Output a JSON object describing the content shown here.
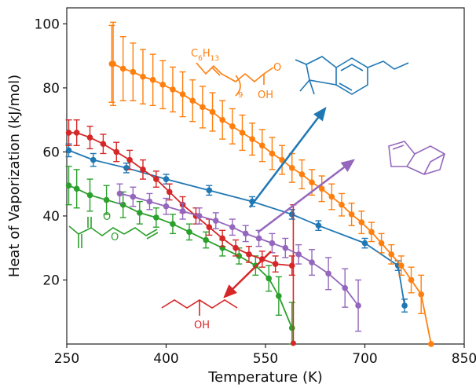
{
  "chart_data": {
    "type": "line",
    "xlabel": "Temperature (K)",
    "ylabel": "Heat of Vaporization (kJ/mol)",
    "xlim": [
      250,
      850
    ],
    "ylim": [
      0,
      105
    ],
    "xticks": [
      250,
      400,
      550,
      700,
      850
    ],
    "yticks": [
      20,
      40,
      60,
      80,
      100
    ],
    "grid": false,
    "series": [
      {
        "color": "#1f77b4",
        "molecule": "indane-derivative",
        "x": [
          253,
          290,
          340,
          400,
          465,
          530,
          590,
          630,
          700,
          750,
          760
        ],
        "y": [
          60.5,
          57.5,
          55,
          51.5,
          48,
          44.5,
          40.5,
          37,
          31.5,
          24.5,
          12
        ],
        "err": [
          2,
          2,
          1.5,
          1.5,
          1.5,
          1.5,
          1.5,
          1.5,
          1.5,
          1.5,
          2
        ]
      },
      {
        "color": "#ff7f0e",
        "molecule": "oleic-acid",
        "molecule_labels": [
          "C6H13",
          "9",
          "O",
          "OH"
        ],
        "x": [
          318,
          320,
          335,
          350,
          365,
          380,
          395,
          410,
          425,
          440,
          455,
          470,
          485,
          500,
          515,
          530,
          545,
          560,
          575,
          590,
          605,
          620,
          635,
          650,
          665,
          680,
          695,
          710,
          725,
          740,
          755,
          770,
          785,
          800
        ],
        "y": [
          87.5,
          87.5,
          86,
          85,
          83.5,
          82.5,
          81,
          79.5,
          78,
          76,
          74,
          72.5,
          70,
          68,
          66,
          64,
          62,
          59.5,
          57.5,
          55,
          53,
          50.5,
          48.5,
          46,
          43.5,
          40.5,
          38,
          35,
          31.5,
          28,
          24.5,
          20,
          15.5,
          0
        ],
        "err": [
          12,
          13,
          10,
          9,
          8.5,
          8,
          7.5,
          7,
          7,
          6.5,
          6.5,
          6,
          6,
          5.5,
          5.5,
          5,
          5,
          5,
          4.5,
          4.5,
          4.5,
          4,
          4,
          4,
          3.5,
          3.5,
          3.5,
          3,
          3,
          3,
          3,
          4,
          6,
          0
        ]
      },
      {
        "color": "#2ca02c",
        "molecule": "allyl-methacrylate",
        "x": [
          253,
          265,
          285,
          310,
          335,
          360,
          385,
          410,
          435,
          460,
          485,
          510,
          535,
          555,
          570,
          590
        ],
        "y": [
          49.5,
          48.5,
          46.5,
          45,
          43.5,
          41,
          39.5,
          37.5,
          35,
          32.5,
          30,
          27.5,
          24.5,
          20.5,
          15,
          5
        ],
        "err": [
          6,
          6,
          5,
          4.5,
          4,
          3.5,
          3,
          3,
          2.5,
          2.5,
          2.5,
          2.5,
          3,
          4,
          6,
          8
        ]
      },
      {
        "color": "#d62728",
        "molecule": "4-heptanol",
        "molecule_labels": [
          "OH"
        ],
        "x": [
          253,
          265,
          285,
          305,
          325,
          345,
          365,
          385,
          405,
          425,
          445,
          465,
          485,
          505,
          525,
          545,
          565,
          590
        ],
        "y": [
          66,
          66,
          64.5,
          62.5,
          60,
          57.5,
          54.5,
          51.5,
          47.5,
          43.5,
          40,
          36.5,
          33,
          30,
          28,
          26.5,
          25,
          24.5
        ],
        "err": [
          4,
          4,
          3.5,
          3,
          3,
          3,
          3,
          2.5,
          2.5,
          2.5,
          2.5,
          2.5,
          2.5,
          2.5,
          2.5,
          2.5,
          2.5,
          3
        ],
        "vertical_drop_x": 592
      },
      {
        "color": "#9467bd",
        "molecule": "dicyclopentadiene",
        "x": [
          330,
          350,
          375,
          400,
          425,
          450,
          475,
          500,
          520,
          540,
          560,
          580,
          600,
          620,
          645,
          670,
          690
        ],
        "y": [
          47,
          46,
          44.5,
          43,
          41.5,
          40,
          38.5,
          36.5,
          34.5,
          33,
          31.5,
          30,
          28,
          25.5,
          22,
          17.5,
          12
        ],
        "err": [
          3,
          3,
          2.5,
          2.5,
          2.5,
          2.5,
          2.5,
          2.5,
          2.5,
          2.5,
          3,
          3,
          3,
          4,
          5,
          6,
          8
        ]
      }
    ]
  }
}
